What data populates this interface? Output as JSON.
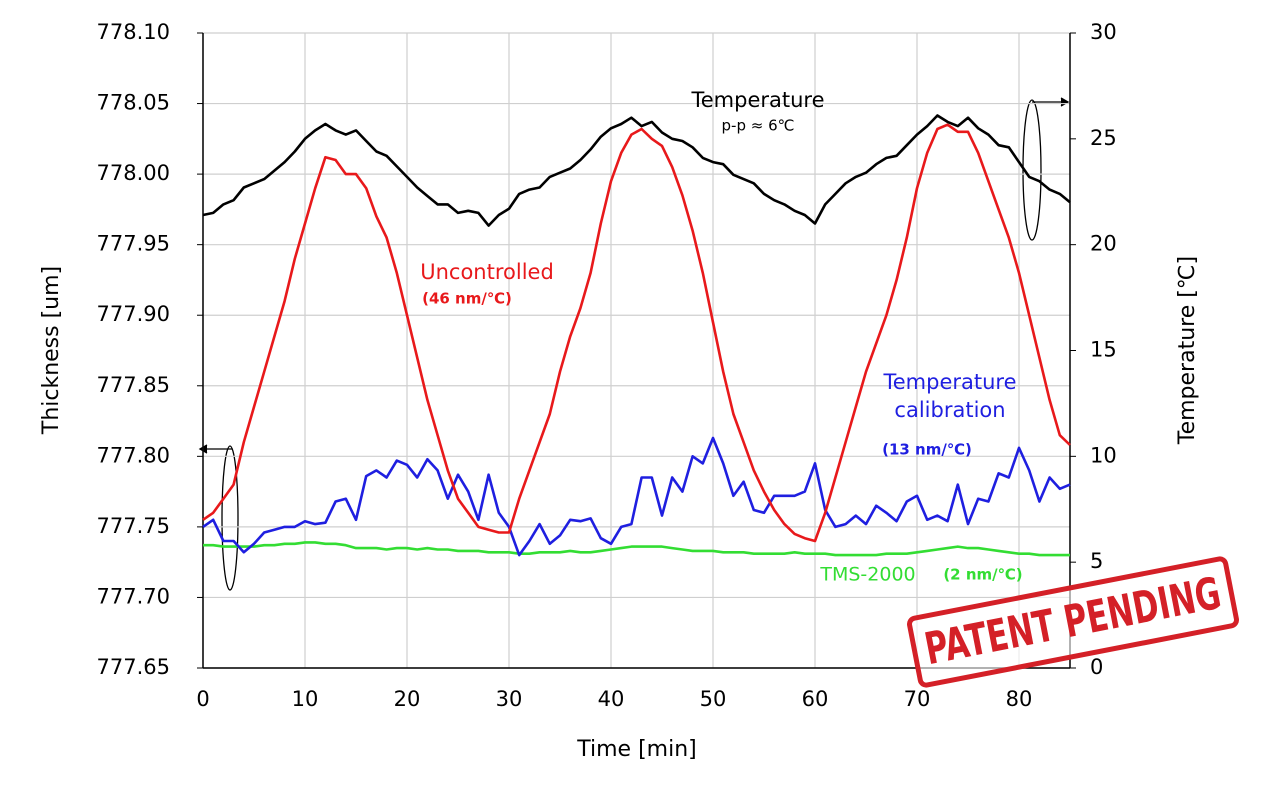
{
  "chart_data": {
    "type": "line",
    "xlabel": "Time [min]",
    "ylabel": "Thickness [um]",
    "y2label": "Temperature [℃]",
    "stamp": "PATENT PENDING",
    "x": [
      0,
      1,
      2,
      3,
      4,
      5,
      6,
      7,
      8,
      9,
      10,
      11,
      12,
      13,
      14,
      15,
      16,
      17,
      18,
      19,
      20,
      21,
      22,
      23,
      24,
      25,
      26,
      27,
      28,
      29,
      30,
      31,
      32,
      33,
      34,
      35,
      36,
      37,
      38,
      39,
      40,
      41,
      42,
      43,
      44,
      45,
      46,
      47,
      48,
      49,
      50,
      51,
      52,
      53,
      54,
      55,
      56,
      57,
      58,
      59,
      60,
      61,
      62,
      63,
      64,
      65,
      66,
      67,
      68,
      69,
      70,
      71,
      72,
      73,
      74,
      75,
      76,
      77,
      78,
      79,
      80,
      81,
      82,
      83,
      84,
      85
    ],
    "xlim": [
      0,
      85
    ],
    "xticks": [
      0,
      10,
      20,
      30,
      40,
      50,
      60,
      70,
      80
    ],
    "ylim": [
      777.65,
      778.1
    ],
    "yticks": [
      777.65,
      {
        "value": 777.7,
        "label": "777.70"
      },
      777.75,
      {
        "value": 777.8,
        "label": "777.80"
      },
      777.85,
      {
        "value": 777.9,
        "label": "777.90"
      },
      777.95,
      {
        "value": 778.0,
        "label": "778.00"
      },
      778.05,
      {
        "value": 778.1,
        "label": "778.10"
      }
    ],
    "y2lim": [
      0,
      30
    ],
    "y2ticks": [
      0,
      5,
      10,
      15,
      20,
      25,
      30
    ],
    "grid": true,
    "series": [
      {
        "name": "Temperature",
        "rate_label": "p-p ≈ 6℃",
        "color": "#000000",
        "axis": "y2",
        "values": [
          21.4,
          21.5,
          21.9,
          22.1,
          22.7,
          22.9,
          23.1,
          23.5,
          23.9,
          24.4,
          25.0,
          25.4,
          25.7,
          25.4,
          25.2,
          25.4,
          24.9,
          24.4,
          24.2,
          23.7,
          23.2,
          22.7,
          22.3,
          21.9,
          21.9,
          21.5,
          21.6,
          21.5,
          20.9,
          21.4,
          21.7,
          22.4,
          22.6,
          22.7,
          23.2,
          23.4,
          23.6,
          24.0,
          24.5,
          25.1,
          25.5,
          25.7,
          26.0,
          25.6,
          25.8,
          25.3,
          25.0,
          24.9,
          24.6,
          24.1,
          23.9,
          23.8,
          23.3,
          23.1,
          22.9,
          22.4,
          22.1,
          21.9,
          21.6,
          21.4,
          21.0,
          21.9,
          22.4,
          22.9,
          23.2,
          23.4,
          23.8,
          24.1,
          24.2,
          24.7,
          25.2,
          25.6,
          26.1,
          25.8,
          25.6,
          26.0,
          25.5,
          25.2,
          24.7,
          24.6,
          23.9,
          23.2,
          23.0,
          22.6,
          22.4,
          22.0
        ]
      },
      {
        "name": "Uncontrolled",
        "rate_label": "(46 nm/℃)",
        "color": "#e8191b",
        "values": [
          777.755,
          777.76,
          777.77,
          777.78,
          777.81,
          777.835,
          777.86,
          777.885,
          777.91,
          777.94,
          777.965,
          777.99,
          778.012,
          778.01,
          778.0,
          778.0,
          777.99,
          777.97,
          777.955,
          777.93,
          777.9,
          777.87,
          777.84,
          777.815,
          777.79,
          777.77,
          777.76,
          777.75,
          777.748,
          777.746,
          777.746,
          777.77,
          777.79,
          777.81,
          777.83,
          777.86,
          777.885,
          777.905,
          777.93,
          777.965,
          777.995,
          778.015,
          778.028,
          778.032,
          778.025,
          778.02,
          778.005,
          777.985,
          777.96,
          777.93,
          777.895,
          777.86,
          777.83,
          777.81,
          777.79,
          777.775,
          777.762,
          777.752,
          777.745,
          777.742,
          777.74,
          777.76,
          777.785,
          777.81,
          777.835,
          777.86,
          777.88,
          777.9,
          777.925,
          777.955,
          777.99,
          778.015,
          778.032,
          778.035,
          778.03,
          778.03,
          778.015,
          777.995,
          777.975,
          777.955,
          777.93,
          777.9,
          777.87,
          777.84,
          777.815,
          777.808
        ]
      },
      {
        "name": "Temperature calibration",
        "rate_label": "(13 nm/℃)",
        "color": "#1f1fe0",
        "values": [
          777.75,
          777.755,
          777.74,
          777.74,
          777.732,
          777.738,
          777.746,
          777.748,
          777.75,
          777.75,
          777.754,
          777.752,
          777.753,
          777.768,
          777.77,
          777.755,
          777.786,
          777.79,
          777.785,
          777.797,
          777.794,
          777.785,
          777.798,
          777.79,
          777.77,
          777.787,
          777.775,
          777.755,
          777.787,
          777.76,
          777.75,
          777.73,
          777.74,
          777.752,
          777.738,
          777.744,
          777.755,
          777.754,
          777.756,
          777.742,
          777.738,
          777.75,
          777.752,
          777.785,
          777.785,
          777.758,
          777.785,
          777.775,
          777.8,
          777.795,
          777.813,
          777.795,
          777.772,
          777.782,
          777.762,
          777.76,
          777.772,
          777.772,
          777.772,
          777.775,
          777.795,
          777.762,
          777.75,
          777.752,
          777.758,
          777.752,
          777.765,
          777.76,
          777.754,
          777.768,
          777.772,
          777.755,
          777.758,
          777.754,
          777.78,
          777.752,
          777.77,
          777.768,
          777.788,
          777.785,
          777.806,
          777.79,
          777.768,
          777.785,
          777.777,
          777.78
        ]
      },
      {
        "name": "TMS-2000",
        "rate_label": "(2 nm/℃)",
        "color": "#33dd33",
        "values": [
          777.737,
          777.737,
          777.736,
          777.736,
          777.736,
          777.736,
          777.737,
          777.737,
          777.738,
          777.738,
          777.739,
          777.739,
          777.738,
          777.738,
          777.737,
          777.735,
          777.735,
          777.735,
          777.734,
          777.735,
          777.735,
          777.734,
          777.735,
          777.734,
          777.734,
          777.733,
          777.733,
          777.733,
          777.732,
          777.732,
          777.732,
          777.731,
          777.731,
          777.732,
          777.732,
          777.732,
          777.733,
          777.732,
          777.732,
          777.733,
          777.734,
          777.735,
          777.736,
          777.736,
          777.736,
          777.736,
          777.735,
          777.734,
          777.733,
          777.733,
          777.733,
          777.732,
          777.732,
          777.732,
          777.731,
          777.731,
          777.731,
          777.731,
          777.732,
          777.731,
          777.731,
          777.731,
          777.73,
          777.73,
          777.73,
          777.73,
          777.73,
          777.731,
          777.731,
          777.731,
          777.732,
          777.733,
          777.734,
          777.735,
          777.736,
          777.735,
          777.735,
          777.734,
          777.733,
          777.732,
          777.731,
          777.731,
          777.73,
          777.73,
          777.73,
          777.73
        ]
      }
    ]
  }
}
